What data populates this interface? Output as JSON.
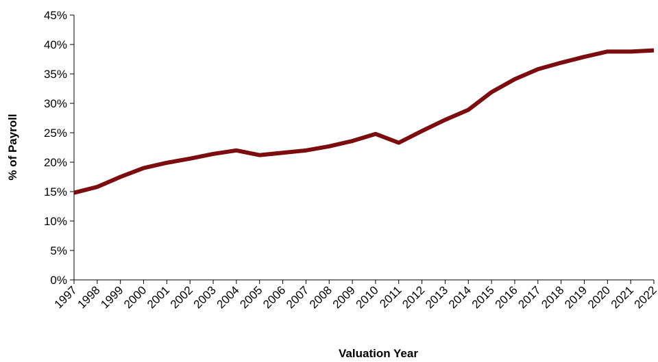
{
  "chart_data": {
    "type": "line",
    "x_label": "Valuation Year",
    "y_label": "% of Payroll",
    "categories": [
      "1997",
      "1998",
      "1999",
      "2000",
      "2001",
      "2002",
      "2003",
      "2004",
      "2005",
      "2006",
      "2007",
      "2008",
      "2009",
      "2010",
      "2011",
      "2012",
      "2013",
      "2014",
      "2015",
      "2016",
      "2017",
      "2018",
      "2019",
      "2020",
      "2021",
      "2022"
    ],
    "series": [
      {
        "color": "#7b0d0e",
        "values": [
          14.8,
          15.8,
          17.5,
          19.0,
          19.9,
          20.6,
          21.4,
          22.0,
          21.2,
          21.6,
          22.0,
          22.7,
          23.6,
          24.8,
          23.3,
          25.3,
          27.2,
          28.9,
          31.9,
          34.1,
          35.8,
          36.9,
          37.9,
          38.8,
          38.8,
          39.0
        ]
      }
    ],
    "ylim": [
      0,
      45
    ],
    "yticks": [
      {
        "value": 0,
        "label": "0%"
      },
      {
        "value": 5,
        "label": "5%"
      },
      {
        "value": 10,
        "label": "10%"
      },
      {
        "value": 15,
        "label": "15%"
      },
      {
        "value": 20,
        "label": "20%"
      },
      {
        "value": 25,
        "label": "25%"
      },
      {
        "value": 30,
        "label": "30%"
      },
      {
        "value": 35,
        "label": "35%"
      },
      {
        "value": 40,
        "label": "40%"
      },
      {
        "value": 45,
        "label": "45%"
      }
    ]
  }
}
